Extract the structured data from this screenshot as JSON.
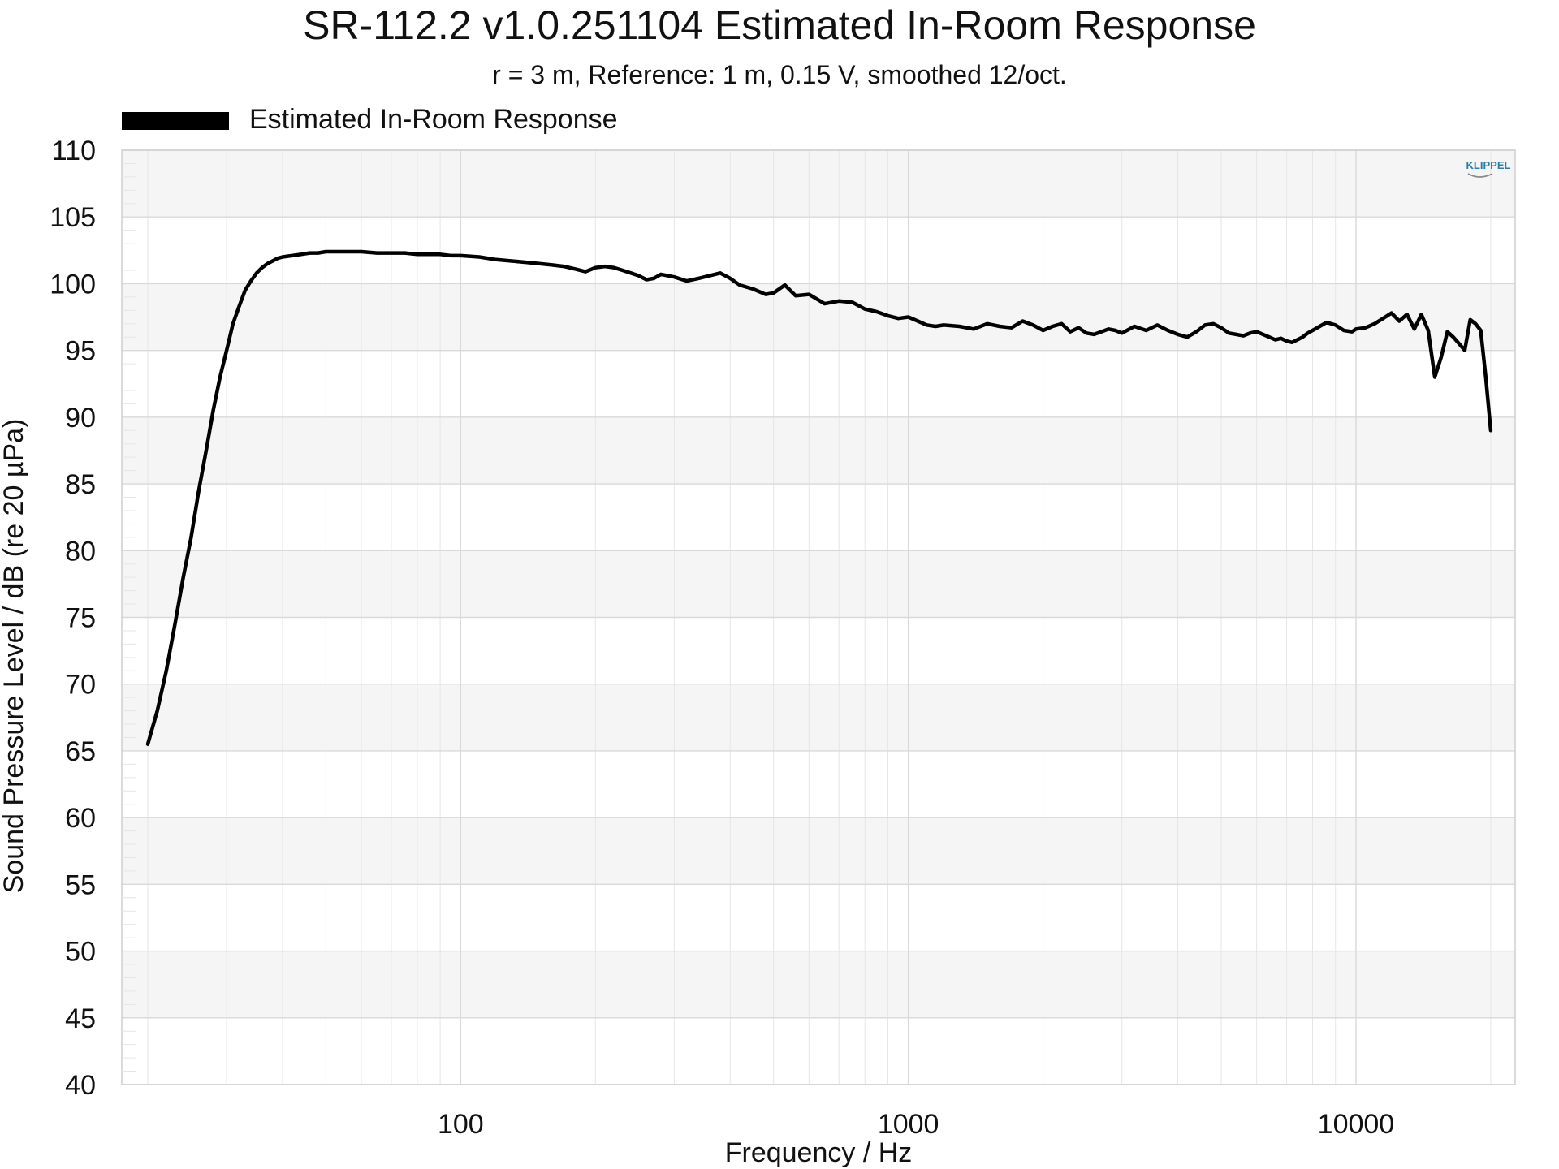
{
  "chart_data": {
    "type": "line",
    "title": "SR-112.2 v1.0.251104 Estimated In-Room Response",
    "subtitle": "r = 3 m,  Reference: 1 m, 0.15 V, smoothed 12/oct.",
    "xlabel": "Frequency / Hz",
    "ylabel": "Sound Pressure Level / dB (re 20 µPa)",
    "xscale": "log",
    "xlim": [
      20,
      20000
    ],
    "ylim": [
      40,
      110
    ],
    "x_ticks": [
      100,
      1000,
      10000
    ],
    "x_tick_labels": [
      "100",
      "1000",
      "10000"
    ],
    "y_ticks": [
      40,
      45,
      50,
      55,
      60,
      65,
      70,
      75,
      80,
      85,
      90,
      95,
      100,
      105,
      110
    ],
    "y_tick_labels": [
      "40",
      "45",
      "50",
      "55",
      "60",
      "65",
      "70",
      "75",
      "80",
      "85",
      "90",
      "95",
      "100",
      "105",
      "110"
    ],
    "grid": true,
    "legend_position": "top-left",
    "series": [
      {
        "name": "Estimated In-Room Response",
        "color": "#000000",
        "x": [
          20,
          21,
          22,
          23,
          24,
          25,
          26,
          27,
          28,
          29,
          30,
          31,
          32,
          33,
          34,
          35,
          36,
          37,
          38,
          39,
          40,
          42,
          44,
          46,
          48,
          50,
          55,
          60,
          65,
          70,
          75,
          80,
          85,
          90,
          95,
          100,
          110,
          120,
          130,
          140,
          150,
          160,
          170,
          180,
          190,
          200,
          210,
          220,
          230,
          240,
          250,
          260,
          270,
          280,
          290,
          300,
          320,
          340,
          360,
          380,
          400,
          420,
          450,
          480,
          500,
          530,
          560,
          600,
          650,
          700,
          750,
          800,
          850,
          900,
          950,
          1000,
          1050,
          1100,
          1150,
          1200,
          1300,
          1400,
          1500,
          1600,
          1700,
          1800,
          1900,
          2000,
          2100,
          2200,
          2300,
          2400,
          2500,
          2600,
          2700,
          2800,
          2900,
          3000,
          3200,
          3400,
          3600,
          3800,
          4000,
          4200,
          4400,
          4600,
          4800,
          5000,
          5200,
          5400,
          5600,
          5800,
          6000,
          6200,
          6400,
          6600,
          6800,
          7000,
          7200,
          7400,
          7600,
          7800,
          8000,
          8300,
          8600,
          9000,
          9400,
          9800,
          10000,
          10500,
          11000,
          11500,
          12000,
          12500,
          13000,
          13500,
          14000,
          14500,
          15000,
          15500,
          16000,
          16500,
          17000,
          17500,
          18000,
          18500,
          19000,
          19500,
          20000
        ],
        "y": [
          65.5,
          68.0,
          71.0,
          74.5,
          78.0,
          81.0,
          84.5,
          87.5,
          90.5,
          93.0,
          95.0,
          97.0,
          98.3,
          99.5,
          100.2,
          100.8,
          101.2,
          101.5,
          101.7,
          101.9,
          102.0,
          102.1,
          102.2,
          102.3,
          102.3,
          102.4,
          102.4,
          102.4,
          102.3,
          102.3,
          102.3,
          102.2,
          102.2,
          102.2,
          102.1,
          102.1,
          102.0,
          101.8,
          101.7,
          101.6,
          101.5,
          101.4,
          101.3,
          101.1,
          100.9,
          101.2,
          101.3,
          101.2,
          101.0,
          100.8,
          100.6,
          100.3,
          100.4,
          100.7,
          100.6,
          100.5,
          100.2,
          100.4,
          100.6,
          100.8,
          100.4,
          99.9,
          99.6,
          99.2,
          99.3,
          99.9,
          99.1,
          99.2,
          98.5,
          98.7,
          98.6,
          98.1,
          97.9,
          97.6,
          97.4,
          97.5,
          97.2,
          96.9,
          96.8,
          96.9,
          96.8,
          96.6,
          97.0,
          96.8,
          96.7,
          97.2,
          96.9,
          96.5,
          96.8,
          97.0,
          96.4,
          96.7,
          96.3,
          96.2,
          96.4,
          96.6,
          96.5,
          96.3,
          96.8,
          96.5,
          96.9,
          96.5,
          96.2,
          96.0,
          96.4,
          96.9,
          97.0,
          96.7,
          96.3,
          96.2,
          96.1,
          96.3,
          96.4,
          96.2,
          96.0,
          95.8,
          95.9,
          95.7,
          95.6,
          95.8,
          96.0,
          96.3,
          96.5,
          96.8,
          97.1,
          96.9,
          96.5,
          96.4,
          96.6,
          96.7,
          97.0,
          97.4,
          97.8,
          97.2,
          97.7,
          96.6,
          97.7,
          96.5,
          93.0,
          94.5,
          96.4,
          96.0,
          95.5,
          95.0,
          97.3,
          97.0,
          96.5,
          93.0,
          89.0
        ]
      }
    ]
  }
}
